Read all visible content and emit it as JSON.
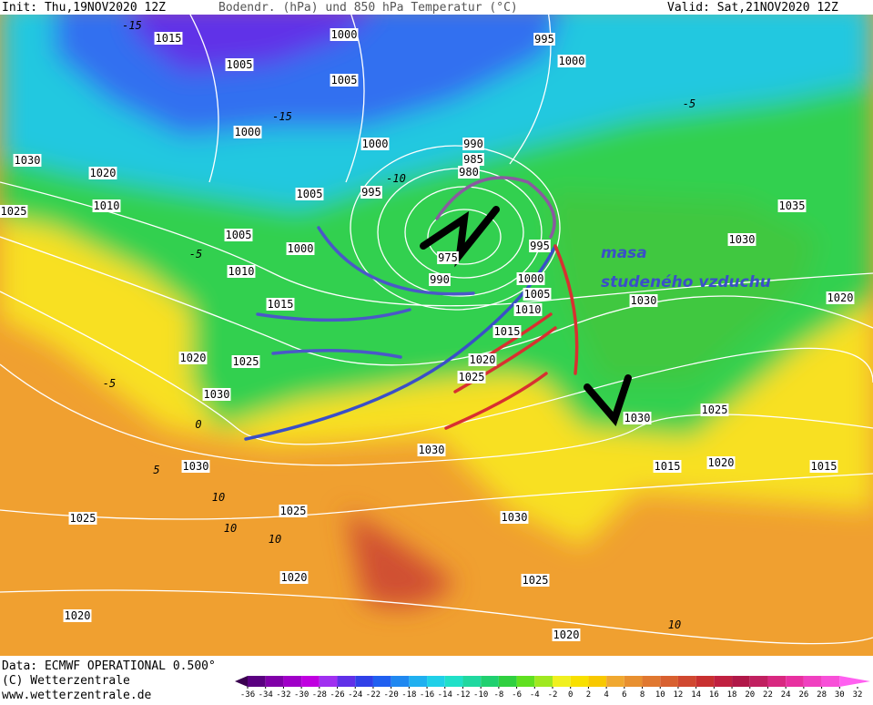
{
  "header": {
    "init": "Init: Thu,19NOV2020 12Z",
    "title": "Bodendr. (hPa) und 850 hPa Temperatur (°C)",
    "valid": "Valid: Sat,21NOV2020 12Z"
  },
  "isobar_labels": [
    1015,
    1000,
    995,
    1000,
    1005,
    1005,
    1000,
    1000,
    990,
    985,
    980,
    1030,
    1020,
    1035,
    1030,
    1005,
    995,
    1010,
    1025,
    1005,
    1000,
    975,
    990,
    995,
    1000,
    1005,
    1010,
    1015,
    1010,
    1015,
    1030,
    1020,
    1020,
    1025,
    1020,
    1025,
    1030,
    1030,
    1025,
    1030,
    1030,
    1015,
    1020,
    1015,
    1025,
    1025,
    1030,
    1020,
    1025,
    1020,
    1020
  ],
  "temperature_labels": [
    -15,
    -15,
    -10,
    -5,
    0,
    -5,
    5,
    10,
    10,
    10,
    10,
    -5
  ],
  "annotation": [
    "masa",
    "studeného vzduchu"
  ],
  "footer": {
    "data": "Data: ECMWF OPERATIONAL 0.500°",
    "copyright": "(C) Wetterzentrale",
    "url": "www.wetterzentrale.de"
  },
  "colorbar": {
    "ticks": [
      -36,
      -34,
      -32,
      -30,
      -28,
      -26,
      -24,
      -22,
      -20,
      -18,
      -16,
      -14,
      -12,
      -10,
      -8,
      -6,
      -4,
      -2,
      0,
      2,
      4,
      6,
      8,
      10,
      12,
      14,
      16,
      18,
      20,
      22,
      24,
      26,
      28,
      30,
      32
    ],
    "colors": [
      "#3a0050",
      "#5a0080",
      "#8000a8",
      "#a000c8",
      "#c000e0",
      "#a030f0",
      "#6030e8",
      "#3040e8",
      "#2060f0",
      "#2088f0",
      "#20b0f0",
      "#20d0e8",
      "#20e0c8",
      "#20d8a0",
      "#20d070",
      "#30d040",
      "#60e020",
      "#a0e820",
      "#f0f020",
      "#f8e000",
      "#f8c800",
      "#f0a830",
      "#e89030",
      "#e07830",
      "#d86030",
      "#d04830",
      "#c83030",
      "#c02040",
      "#b01848",
      "#c02060",
      "#d82880",
      "#e830a0",
      "#f040c0",
      "#f850d8",
      "#ff60f0"
    ]
  }
}
